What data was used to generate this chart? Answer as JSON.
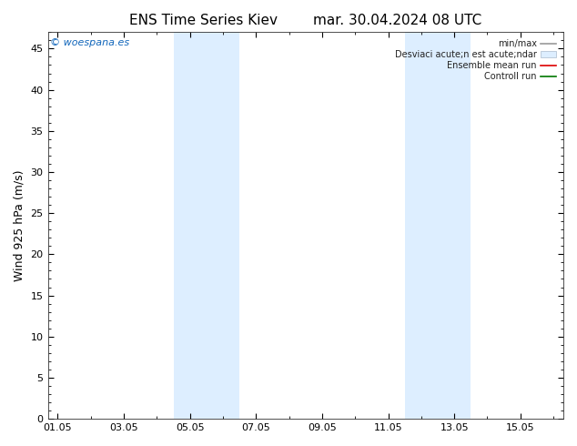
{
  "title_left": "ENS Time Series Kiev",
  "title_right": "mar. 30.04.2024 08 UTC",
  "ylabel": "Wind 925 hPa (m/s)",
  "watermark": "© woespana.es",
  "ylim": [
    0,
    47
  ],
  "yticks": [
    0,
    5,
    10,
    15,
    20,
    25,
    30,
    35,
    40,
    45
  ],
  "xtick_labels": [
    "01.05",
    "03.05",
    "05.05",
    "07.05",
    "09.05",
    "11.05",
    "13.05",
    "15.05"
  ],
  "xtick_positions": [
    0,
    2,
    4,
    6,
    8,
    10,
    12,
    14
  ],
  "xlim": [
    -0.3,
    15.3
  ],
  "shaded_bands": [
    {
      "x_start": 3.5,
      "x_end": 4.5,
      "color": "#ddeeff"
    },
    {
      "x_start": 4.5,
      "x_end": 5.5,
      "color": "#ddeeff"
    },
    {
      "x_start": 10.5,
      "x_end": 11.5,
      "color": "#ddeeff"
    },
    {
      "x_start": 11.5,
      "x_end": 12.5,
      "color": "#ddeeff"
    }
  ],
  "background_color": "#ffffff",
  "title_fontsize": 11,
  "tick_fontsize": 8,
  "ylabel_fontsize": 9,
  "watermark_fontsize": 8,
  "watermark_color": "#1166bb",
  "legend_labels": [
    "min/max",
    "Desviaci acute;n est acute;ndar",
    "Ensemble mean run",
    "Controll run"
  ],
  "legend_colors_line": [
    "#999999",
    "#ccddee",
    "#dd0000",
    "#007700"
  ],
  "legend_patch_for": [
    1
  ]
}
